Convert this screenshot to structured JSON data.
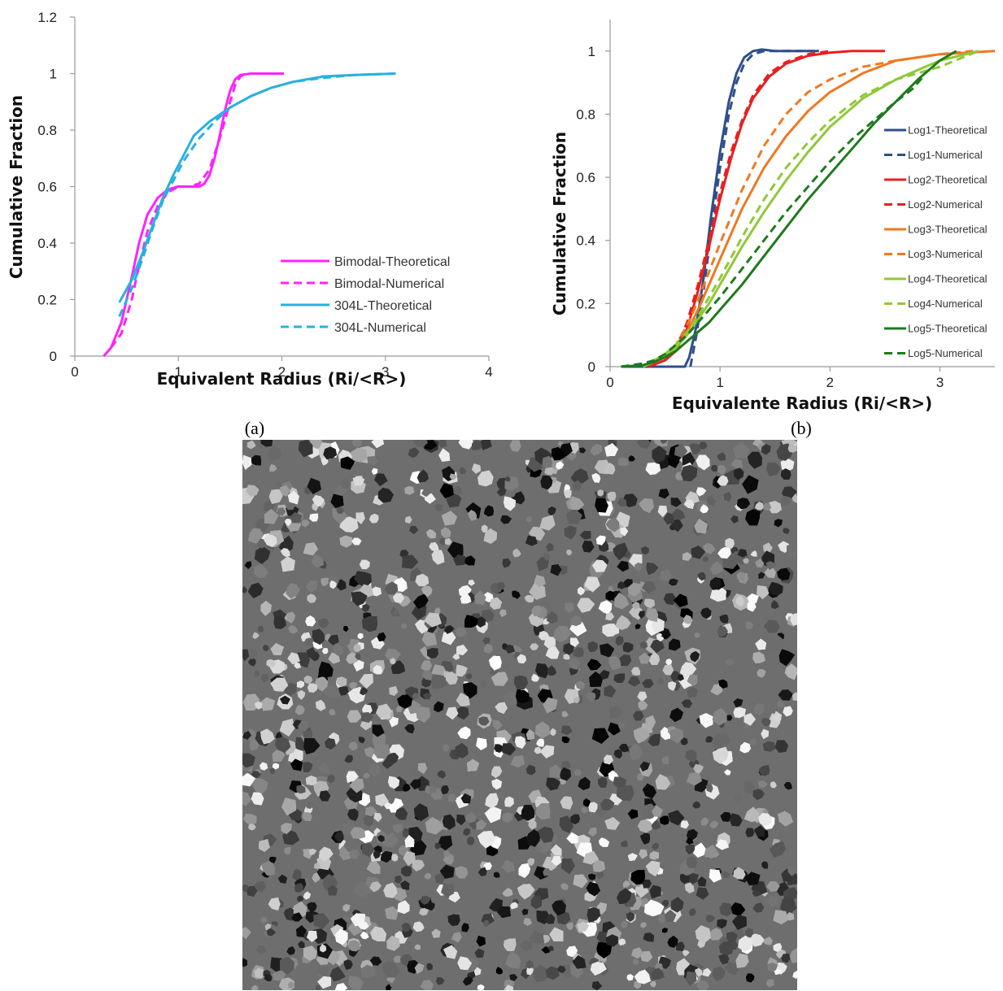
{
  "panels": {
    "a": {
      "label": "(a)"
    },
    "b": {
      "label": "(b)"
    }
  },
  "chart_data": [
    {
      "id": "a",
      "type": "line",
      "xlabel": "Equivalent Radius (Ri/<R>)",
      "ylabel": "Cumulative Fraction",
      "xlim": [
        0,
        4
      ],
      "ylim": [
        0,
        1.2
      ],
      "x_ticks": [
        0,
        1,
        2,
        3,
        4
      ],
      "y_ticks": [
        0,
        0.2,
        0.4,
        0.6,
        0.8,
        1,
        1.2
      ],
      "x_tick_labels": [
        "0",
        "1",
        "2",
        "3",
        "4"
      ],
      "y_tick_labels": [
        "0",
        "0.2",
        "0.4",
        "0.6",
        "0.8",
        "1",
        "1.2"
      ],
      "grid": false,
      "legend_position": "bottom-right",
      "series": [
        {
          "name": "Bimodal-Theoretical",
          "color": "#ff22ff",
          "dash": false,
          "x": [
            0.28,
            0.35,
            0.45,
            0.55,
            0.62,
            0.7,
            0.8,
            0.9,
            1.0,
            1.1,
            1.2,
            1.25,
            1.3,
            1.35,
            1.4,
            1.45,
            1.5,
            1.55,
            1.6,
            1.7,
            1.8,
            1.9,
            2.02
          ],
          "y": [
            0.0,
            0.03,
            0.12,
            0.28,
            0.4,
            0.5,
            0.56,
            0.59,
            0.6,
            0.6,
            0.6,
            0.61,
            0.64,
            0.7,
            0.78,
            0.87,
            0.94,
            0.98,
            0.995,
            1.0,
            1.0,
            1.0,
            1.0
          ]
        },
        {
          "name": "Bimodal-Numerical",
          "color": "#ff22ff",
          "dash": true,
          "x": [
            0.35,
            0.45,
            0.55,
            0.62,
            0.7,
            0.8,
            0.9,
            1.0,
            1.1,
            1.2,
            1.3,
            1.4,
            1.5,
            1.55,
            1.6,
            1.65
          ],
          "y": [
            0.03,
            0.08,
            0.2,
            0.32,
            0.44,
            0.53,
            0.58,
            0.6,
            0.6,
            0.61,
            0.66,
            0.77,
            0.9,
            0.96,
            0.99,
            1.0
          ]
        },
        {
          "name": "304L-Theoretical",
          "color": "#2ab0e0",
          "dash": false,
          "x": [
            0.43,
            0.55,
            0.65,
            0.75,
            0.85,
            0.95,
            1.05,
            1.15,
            1.3,
            1.5,
            1.7,
            1.9,
            2.1,
            2.4,
            2.7,
            3.1
          ],
          "y": [
            0.19,
            0.27,
            0.36,
            0.46,
            0.56,
            0.64,
            0.71,
            0.78,
            0.83,
            0.88,
            0.92,
            0.95,
            0.97,
            0.99,
            0.995,
            1.0
          ]
        },
        {
          "name": "304L-Numerical",
          "color": "#2ab0e0",
          "dash": true,
          "x": [
            0.43,
            0.55,
            0.65,
            0.75,
            0.85,
            0.95,
            1.05,
            1.2,
            1.35,
            1.5,
            1.7,
            1.9,
            2.1,
            2.4,
            2.7,
            3.1
          ],
          "y": [
            0.14,
            0.24,
            0.34,
            0.45,
            0.55,
            0.62,
            0.69,
            0.77,
            0.83,
            0.88,
            0.92,
            0.95,
            0.97,
            0.985,
            0.995,
            1.0
          ]
        }
      ]
    },
    {
      "id": "b",
      "type": "line",
      "xlabel": "Equivalente Radius (Ri/<R>)",
      "ylabel": "Cumulative Fraction",
      "xlim": [
        0,
        3.5
      ],
      "ylim": [
        0,
        1.1
      ],
      "x_ticks": [
        0,
        1,
        2,
        3
      ],
      "y_ticks": [
        0,
        0.2,
        0.4,
        0.6,
        0.8,
        1
      ],
      "x_tick_labels": [
        "0",
        "1",
        "2",
        "3"
      ],
      "y_tick_labels": [
        "0",
        "0.2",
        "0.4",
        "0.6",
        "0.8",
        "1"
      ],
      "grid": false,
      "legend_position": "right",
      "series": [
        {
          "name": "Log1-Theoretical",
          "color": "#2f4f8a",
          "dash": false,
          "x": [
            0.1,
            0.68,
            0.72,
            0.78,
            0.85,
            0.92,
            1.0,
            1.08,
            1.15,
            1.22,
            1.3,
            1.38,
            1.5,
            1.7,
            1.9
          ],
          "y": [
            0.0,
            0.0,
            0.03,
            0.12,
            0.28,
            0.48,
            0.68,
            0.84,
            0.93,
            0.98,
            1.0,
            1.005,
            1.0,
            1.0,
            1.0
          ]
        },
        {
          "name": "Log1-Numerical",
          "color": "#2f4f8a",
          "dash": true,
          "x": [
            0.73,
            0.78,
            0.85,
            0.92,
            1.0,
            1.08,
            1.15,
            1.22,
            1.3,
            1.4,
            1.5,
            1.7,
            1.85
          ],
          "y": [
            0.0,
            0.09,
            0.24,
            0.43,
            0.63,
            0.8,
            0.9,
            0.96,
            0.99,
            1.0,
            1.0,
            1.0,
            1.0
          ]
        },
        {
          "name": "Log2-Theoretical",
          "color": "#e82020",
          "dash": false,
          "x": [
            0.35,
            0.5,
            0.6,
            0.7,
            0.8,
            0.9,
            1.0,
            1.1,
            1.2,
            1.3,
            1.45,
            1.6,
            1.8,
            2.0,
            2.2,
            2.5
          ],
          "y": [
            0.0,
            0.02,
            0.05,
            0.12,
            0.24,
            0.38,
            0.53,
            0.66,
            0.77,
            0.85,
            0.92,
            0.96,
            0.985,
            0.995,
            1.0,
            1.0
          ]
        },
        {
          "name": "Log2-Numerical",
          "color": "#e82020",
          "dash": true,
          "x": [
            0.5,
            0.6,
            0.7,
            0.8,
            0.9,
            1.0,
            1.1,
            1.2,
            1.3,
            1.45,
            1.6,
            1.8,
            2.0
          ],
          "y": [
            0.02,
            0.06,
            0.14,
            0.26,
            0.4,
            0.55,
            0.68,
            0.78,
            0.86,
            0.93,
            0.965,
            0.99,
            1.0
          ]
        },
        {
          "name": "Log3-Theoretical",
          "color": "#f07820",
          "dash": false,
          "x": [
            0.3,
            0.5,
            0.6,
            0.7,
            0.8,
            0.9,
            1.0,
            1.2,
            1.4,
            1.6,
            1.8,
            2.0,
            2.3,
            2.6,
            3.0,
            3.5
          ],
          "y": [
            0.0,
            0.03,
            0.06,
            0.11,
            0.18,
            0.26,
            0.34,
            0.5,
            0.63,
            0.73,
            0.81,
            0.87,
            0.93,
            0.97,
            0.99,
            1.0
          ]
        },
        {
          "name": "Log3-Numerical",
          "color": "#f07820",
          "dash": true,
          "x": [
            0.5,
            0.6,
            0.7,
            0.8,
            0.9,
            1.0,
            1.2,
            1.4,
            1.6,
            1.8,
            2.0,
            2.3,
            2.6,
            3.0,
            3.3
          ],
          "y": [
            0.03,
            0.07,
            0.13,
            0.21,
            0.3,
            0.39,
            0.56,
            0.7,
            0.8,
            0.87,
            0.91,
            0.95,
            0.97,
            0.99,
            1.0
          ]
        },
        {
          "name": "Log4-Theoretical",
          "color": "#90c838",
          "dash": false,
          "x": [
            0.3,
            0.5,
            0.6,
            0.7,
            0.8,
            0.9,
            1.0,
            1.2,
            1.4,
            1.6,
            1.8,
            2.0,
            2.3,
            2.6,
            3.0,
            3.35
          ],
          "y": [
            0.0,
            0.03,
            0.06,
            0.1,
            0.15,
            0.2,
            0.26,
            0.38,
            0.49,
            0.59,
            0.68,
            0.76,
            0.85,
            0.91,
            0.97,
            1.0
          ]
        },
        {
          "name": "Log4-Numerical",
          "color": "#90c838",
          "dash": true,
          "x": [
            0.4,
            0.5,
            0.6,
            0.7,
            0.8,
            0.9,
            1.0,
            1.2,
            1.4,
            1.6,
            1.8,
            2.0,
            2.3,
            2.6,
            3.0,
            3.35
          ],
          "y": [
            0.02,
            0.04,
            0.07,
            0.11,
            0.16,
            0.22,
            0.28,
            0.41,
            0.53,
            0.63,
            0.71,
            0.78,
            0.86,
            0.91,
            0.95,
            1.0
          ]
        },
        {
          "name": "Log5-Theoretical",
          "color": "#1e7a1e",
          "dash": false,
          "x": [
            0.1,
            0.3,
            0.4,
            0.5,
            0.6,
            0.7,
            0.8,
            0.9,
            1.0,
            1.2,
            1.4,
            1.6,
            1.8,
            2.0,
            2.2,
            2.4,
            2.6,
            2.8,
            3.0,
            3.15
          ],
          "y": [
            0.0,
            0.005,
            0.015,
            0.03,
            0.05,
            0.08,
            0.11,
            0.14,
            0.18,
            0.26,
            0.35,
            0.44,
            0.53,
            0.61,
            0.69,
            0.77,
            0.84,
            0.91,
            0.97,
            1.0
          ]
        },
        {
          "name": "Log5-Numerical",
          "color": "#1e7a1e",
          "dash": true,
          "x": [
            0.1,
            0.3,
            0.4,
            0.5,
            0.6,
            0.7,
            0.8,
            0.9,
            1.0,
            1.2,
            1.4,
            1.6,
            1.8,
            2.0,
            2.2,
            2.4,
            2.6,
            2.75,
            2.85
          ],
          "y": [
            0.0,
            0.01,
            0.02,
            0.04,
            0.07,
            0.1,
            0.14,
            0.18,
            0.22,
            0.31,
            0.4,
            0.49,
            0.57,
            0.65,
            0.72,
            0.78,
            0.84,
            0.88,
            0.92
          ]
        }
      ]
    }
  ],
  "microstructure": {
    "style": "grayscale-voronoi-grains",
    "grain_count": 7000
  }
}
